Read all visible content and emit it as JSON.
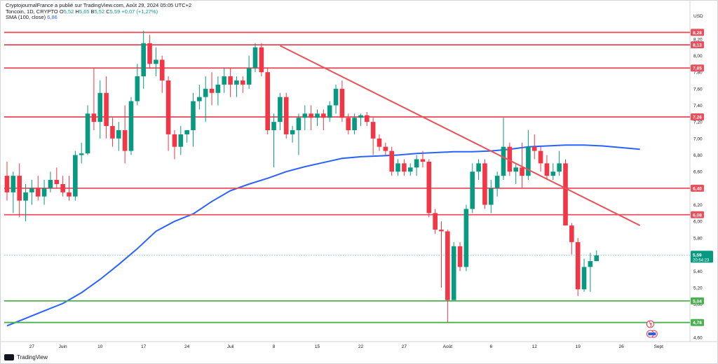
{
  "header": {
    "published": "CryptojournalFrance a publié sur TradingView.com, Août 29, 2024 05:05 UTC+2",
    "symbol": "Toncoin, 1D, CRYPTO",
    "o_label": "O",
    "o_value": "5,52",
    "h_label": "H",
    "h_value": "5,65",
    "b_label": "B",
    "b_value": "5,52",
    "c_label": "C",
    "c_value": "5,59",
    "change": "+0,07 (+1,27%)",
    "sma_label": "SMA (100, close)",
    "sma_value": "6,86"
  },
  "footer": {
    "brand": "TradingView"
  },
  "axis": {
    "currency": "USD"
  },
  "colors": {
    "up": "#089981",
    "down": "#f23645",
    "sma": "#2962ff",
    "level_red": "#e8505b",
    "level_green": "#4caf50"
  },
  "chart_data": {
    "type": "candlestick",
    "ylim": [
      4.6,
      8.35
    ],
    "y_ticks": [
      "8,20",
      "8,00",
      "7,80",
      "7,60",
      "7,40",
      "7,20",
      "7,00",
      "6,80",
      "6,60",
      "6,40",
      "6,20",
      "6,00",
      "5,80",
      "5,60",
      "5,40",
      "5,20",
      "5,00",
      "4,80",
      "4,60"
    ],
    "x_ticks": [
      {
        "i": 4,
        "label": "27"
      },
      {
        "i": 9,
        "label": "Juin"
      },
      {
        "i": 15,
        "label": "10"
      },
      {
        "i": 22,
        "label": "17"
      },
      {
        "i": 29,
        "label": "24"
      },
      {
        "i": 36,
        "label": "Juil"
      },
      {
        "i": 43,
        "label": "8"
      },
      {
        "i": 50,
        "label": "15"
      },
      {
        "i": 57,
        "label": "22"
      },
      {
        "i": 64,
        "label": "27"
      },
      {
        "i": 71,
        "label": "Août"
      },
      {
        "i": 78,
        "label": "6"
      },
      {
        "i": 85,
        "label": "12"
      },
      {
        "i": 92,
        "label": "19"
      },
      {
        "i": 99,
        "label": "26"
      },
      {
        "i": 105,
        "label": "Sept"
      }
    ],
    "candles": [
      [
        6.55,
        6.72,
        6.25,
        6.35
      ],
      [
        6.35,
        6.6,
        6.1,
        6.55
      ],
      [
        6.55,
        6.7,
        6.05,
        6.25
      ],
      [
        6.25,
        6.45,
        6.0,
        6.35
      ],
      [
        6.35,
        6.5,
        6.2,
        6.4
      ],
      [
        6.4,
        6.55,
        6.25,
        6.3
      ],
      [
        6.3,
        6.5,
        6.2,
        6.4
      ],
      [
        6.4,
        6.6,
        6.35,
        6.5
      ],
      [
        6.5,
        6.65,
        6.4,
        6.45
      ],
      [
        6.45,
        6.55,
        6.3,
        6.35
      ],
      [
        6.35,
        6.55,
        6.25,
        6.3
      ],
      [
        6.3,
        6.85,
        6.25,
        6.8
      ],
      [
        6.8,
        6.95,
        6.7,
        6.82
      ],
      [
        6.82,
        7.4,
        6.8,
        7.3
      ],
      [
        7.3,
        7.85,
        7.1,
        7.2
      ],
      [
        7.2,
        7.7,
        7.0,
        7.55
      ],
      [
        7.55,
        7.75,
        7.0,
        7.15
      ],
      [
        7.15,
        7.25,
        6.9,
        7.0
      ],
      [
        7.0,
        7.2,
        6.85,
        7.1
      ],
      [
        7.1,
        7.4,
        6.7,
        6.85
      ],
      [
        6.85,
        7.5,
        6.8,
        7.45
      ],
      [
        7.45,
        7.9,
        7.4,
        7.75
      ],
      [
        7.75,
        8.3,
        7.6,
        8.15
      ],
      [
        8.15,
        8.25,
        7.85,
        7.9
      ],
      [
        7.9,
        8.1,
        7.75,
        7.95
      ],
      [
        7.95,
        8.0,
        7.55,
        7.7
      ],
      [
        7.7,
        7.75,
        6.85,
        7.05
      ],
      [
        7.05,
        7.1,
        6.75,
        6.9
      ],
      [
        6.9,
        7.15,
        6.8,
        7.05
      ],
      [
        7.05,
        7.1,
        6.95,
        7.1
      ],
      [
        7.1,
        7.55,
        6.9,
        7.45
      ],
      [
        7.45,
        7.65,
        7.35,
        7.5
      ],
      [
        7.5,
        7.75,
        7.2,
        7.6
      ],
      [
        7.6,
        7.8,
        7.4,
        7.55
      ],
      [
        7.55,
        7.75,
        7.4,
        7.65
      ],
      [
        7.65,
        7.85,
        7.55,
        7.75
      ],
      [
        7.75,
        7.85,
        7.5,
        7.65
      ],
      [
        7.65,
        7.75,
        7.5,
        7.7
      ],
      [
        7.7,
        7.75,
        7.55,
        7.65
      ],
      [
        7.65,
        8.0,
        7.6,
        7.85
      ],
      [
        7.85,
        8.15,
        7.8,
        8.1
      ],
      [
        8.1,
        8.15,
        7.75,
        7.8
      ],
      [
        7.8,
        7.85,
        7.05,
        7.1
      ],
      [
        7.1,
        7.3,
        6.65,
        7.2
      ],
      [
        7.2,
        7.55,
        7.1,
        7.5
      ],
      [
        7.5,
        7.55,
        7.0,
        7.05
      ],
      [
        7.05,
        7.15,
        6.95,
        7.1
      ],
      [
        7.1,
        7.3,
        6.8,
        7.25
      ],
      [
        7.25,
        7.4,
        7.1,
        7.3
      ],
      [
        7.3,
        7.4,
        7.1,
        7.25
      ],
      [
        7.25,
        7.35,
        7.15,
        7.3
      ],
      [
        7.3,
        7.35,
        7.1,
        7.25
      ],
      [
        7.25,
        7.45,
        7.2,
        7.4
      ],
      [
        7.4,
        7.65,
        7.3,
        7.6
      ],
      [
        7.6,
        7.7,
        7.2,
        7.25
      ],
      [
        7.25,
        7.3,
        7.05,
        7.1
      ],
      [
        7.1,
        7.3,
        7.05,
        7.25
      ],
      [
        7.25,
        7.3,
        7.15,
        7.28
      ],
      [
        7.28,
        7.32,
        7.15,
        7.2
      ],
      [
        7.2,
        7.25,
        6.8,
        7.0
      ],
      [
        7.0,
        7.05,
        6.85,
        6.9
      ],
      [
        6.9,
        6.95,
        6.8,
        6.85
      ],
      [
        6.85,
        6.9,
        6.55,
        6.6
      ],
      [
        6.6,
        6.75,
        6.55,
        6.7
      ],
      [
        6.7,
        6.75,
        6.55,
        6.6
      ],
      [
        6.6,
        6.7,
        6.55,
        6.65
      ],
      [
        6.65,
        6.8,
        6.55,
        6.75
      ],
      [
        6.75,
        6.85,
        6.65,
        6.72
      ],
      [
        6.72,
        6.75,
        6.05,
        6.1
      ],
      [
        6.1,
        6.15,
        5.85,
        5.9
      ],
      [
        5.9,
        6.0,
        5.2,
        5.88
      ],
      [
        5.88,
        5.9,
        4.78,
        5.05
      ],
      [
        5.05,
        5.75,
        5.05,
        5.7
      ],
      [
        5.7,
        5.75,
        5.4,
        5.45
      ],
      [
        5.45,
        6.2,
        5.4,
        6.15
      ],
      [
        6.15,
        6.7,
        6.1,
        6.6
      ],
      [
        6.6,
        6.75,
        6.5,
        6.7
      ],
      [
        6.7,
        6.75,
        6.15,
        6.2
      ],
      [
        6.2,
        6.5,
        6.1,
        6.4
      ],
      [
        6.4,
        6.6,
        6.3,
        6.55
      ],
      [
        6.55,
        7.25,
        6.5,
        6.9
      ],
      [
        6.9,
        6.95,
        6.55,
        6.6
      ],
      [
        6.6,
        6.7,
        6.45,
        6.65
      ],
      [
        6.65,
        6.95,
        6.4,
        6.55
      ],
      [
        6.55,
        7.1,
        6.5,
        6.9
      ],
      [
        6.9,
        7.05,
        6.75,
        6.85
      ],
      [
        6.85,
        6.9,
        6.6,
        6.7
      ],
      [
        6.7,
        6.8,
        6.5,
        6.55
      ],
      [
        6.55,
        6.7,
        6.5,
        6.6
      ],
      [
        6.6,
        6.85,
        6.55,
        6.7
      ],
      [
        6.7,
        6.75,
        5.95,
        5.95
      ],
      [
        5.95,
        5.98,
        5.6,
        5.75
      ],
      [
        5.75,
        5.8,
        5.1,
        5.18
      ],
      [
        5.18,
        5.55,
        5.15,
        5.45
      ],
      [
        5.45,
        5.62,
        5.15,
        5.52
      ],
      [
        5.52,
        5.65,
        5.52,
        5.59
      ]
    ],
    "sma": {
      "name": "SMA (100, close)",
      "points": [
        [
          0,
          4.74
        ],
        [
          3,
          4.83
        ],
        [
          6,
          4.92
        ],
        [
          9,
          5.01
        ],
        [
          12,
          5.14
        ],
        [
          15,
          5.3
        ],
        [
          18,
          5.48
        ],
        [
          21,
          5.67
        ],
        [
          24,
          5.88
        ],
        [
          27,
          6.0
        ],
        [
          30,
          6.09
        ],
        [
          33,
          6.24
        ],
        [
          36,
          6.37
        ],
        [
          39,
          6.45
        ],
        [
          42,
          6.52
        ],
        [
          45,
          6.6
        ],
        [
          48,
          6.66
        ],
        [
          51,
          6.71
        ],
        [
          54,
          6.76
        ],
        [
          57,
          6.78
        ],
        [
          60,
          6.79
        ],
        [
          63,
          6.8
        ],
        [
          66,
          6.82
        ],
        [
          69,
          6.83
        ],
        [
          72,
          6.84
        ],
        [
          75,
          6.84
        ],
        [
          78,
          6.85
        ],
        [
          81,
          6.87
        ],
        [
          84,
          6.9
        ],
        [
          87,
          6.91
        ],
        [
          90,
          6.92
        ],
        [
          93,
          6.92
        ],
        [
          96,
          6.91
        ],
        [
          99,
          6.89
        ],
        [
          102,
          6.87
        ]
      ]
    },
    "trendline": {
      "from": [
        44,
        8.12
      ],
      "to": [
        102,
        5.95
      ]
    },
    "levels": [
      {
        "value": 8.28,
        "label": "8,28",
        "kind": "resistance"
      },
      {
        "value": 8.13,
        "label": "8,13",
        "kind": "resistance"
      },
      {
        "value": 7.85,
        "label": "7,85",
        "kind": "resistance"
      },
      {
        "value": 7.26,
        "label": "7,26",
        "kind": "resistance"
      },
      {
        "value": 6.4,
        "label": "6,40",
        "kind": "resistance"
      },
      {
        "value": 6.08,
        "label": "6,08",
        "kind": "resistance"
      },
      {
        "value": 5.04,
        "label": "5,04",
        "kind": "support"
      },
      {
        "value": 4.78,
        "label": "4,78",
        "kind": "support"
      }
    ],
    "last_price": {
      "value": 5.59,
      "label": "5,59",
      "countdown": "20:54:23"
    }
  }
}
